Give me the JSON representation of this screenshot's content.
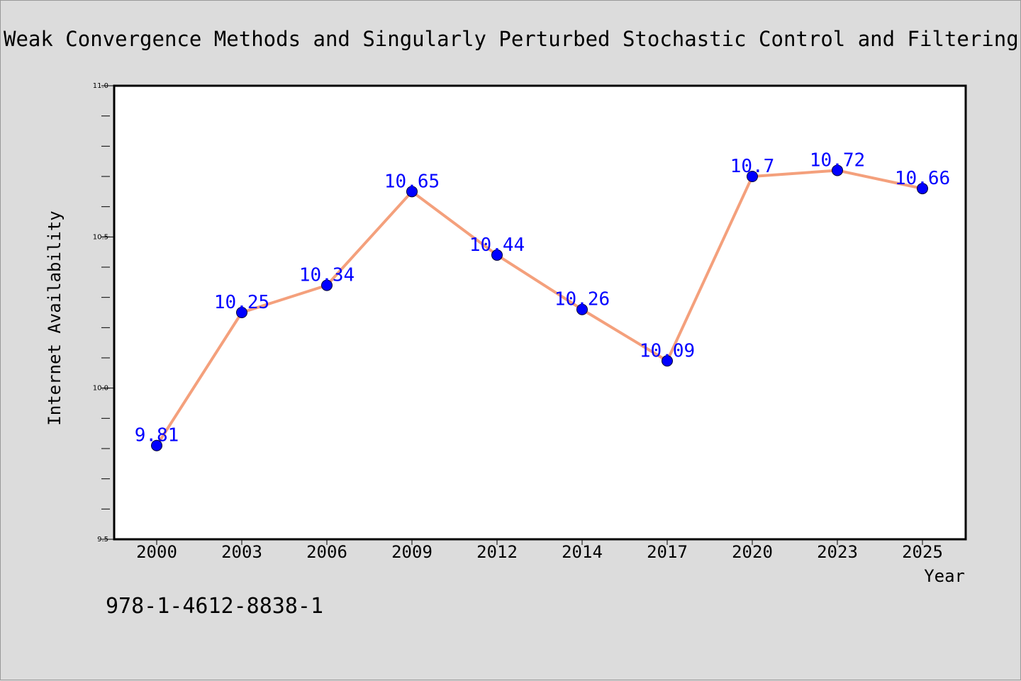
{
  "title": "Weak Convergence Methods and Singularly Perturbed Stochastic Control and Filtering Problems",
  "footer_text": "978-1-4612-8838-1",
  "chart_data": {
    "type": "line",
    "categories": [
      "2000",
      "2003",
      "2006",
      "2009",
      "2012",
      "2014",
      "2017",
      "2020",
      "2023",
      "2025"
    ],
    "series": [
      {
        "values": [
          9.81,
          10.25,
          10.34,
          10.65,
          10.44,
          10.26,
          10.09,
          10.7,
          10.72,
          10.66
        ],
        "data_labels": [
          "9.81",
          "10.25",
          "10.34",
          "10.65",
          "10.44",
          "10.26",
          "10.09",
          "10.7",
          "10.72",
          "10.66"
        ]
      }
    ],
    "xlabel": "Year",
    "ylabel": "Internet Availability",
    "ylim": [
      9.5,
      11.0
    ],
    "yticks": [
      9.5,
      10.0,
      10.5,
      11.0
    ],
    "ytick_labels": [
      "9.5",
      "10.0",
      "10.5",
      "11.0"
    ],
    "grid": false,
    "colors": {
      "line": "#f4a07c",
      "marker": "#0000ff",
      "data_label": "#0000ff",
      "background": "#dcdcdc",
      "plot_background": "#ffffff"
    }
  }
}
